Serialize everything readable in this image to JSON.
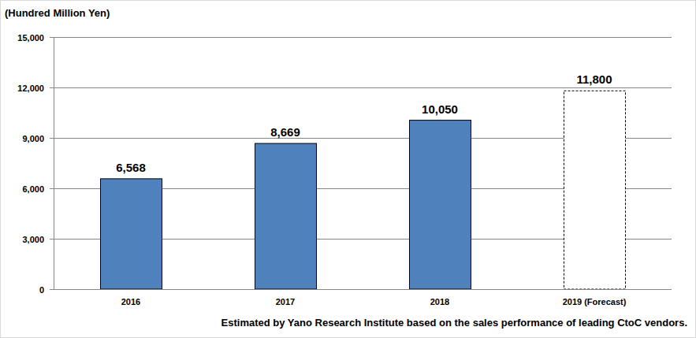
{
  "chart_data": {
    "type": "bar",
    "y_label": "(Hundred Million Yen)",
    "annotations": [
      "Estimated by Yano Research Institute based on the sales performance of leading CtoC vendors."
    ],
    "categories": [
      "2016",
      "2017",
      "2018",
      "2019 (Forecast)"
    ],
    "values": [
      6568,
      8669,
      10050,
      11800
    ],
    "value_labels": [
      "6,568",
      "8,669",
      "10,050",
      "11,800"
    ],
    "colors": [
      "#4f81bd",
      "#4f81bd",
      "#4f81bd",
      "#ffffff"
    ],
    "ylim": [
      0,
      15000
    ],
    "yticks": [
      0,
      {
        "value": 3000,
        "label": "3,000"
      },
      {
        "value": 6000,
        "label": "6,000"
      },
      {
        "value": 9000,
        "label": "9,000"
      },
      {
        "value": 12000,
        "label": "12,000"
      },
      {
        "value": 15000,
        "label": "15,000"
      }
    ],
    "grid": true,
    "data_labels": true
  }
}
